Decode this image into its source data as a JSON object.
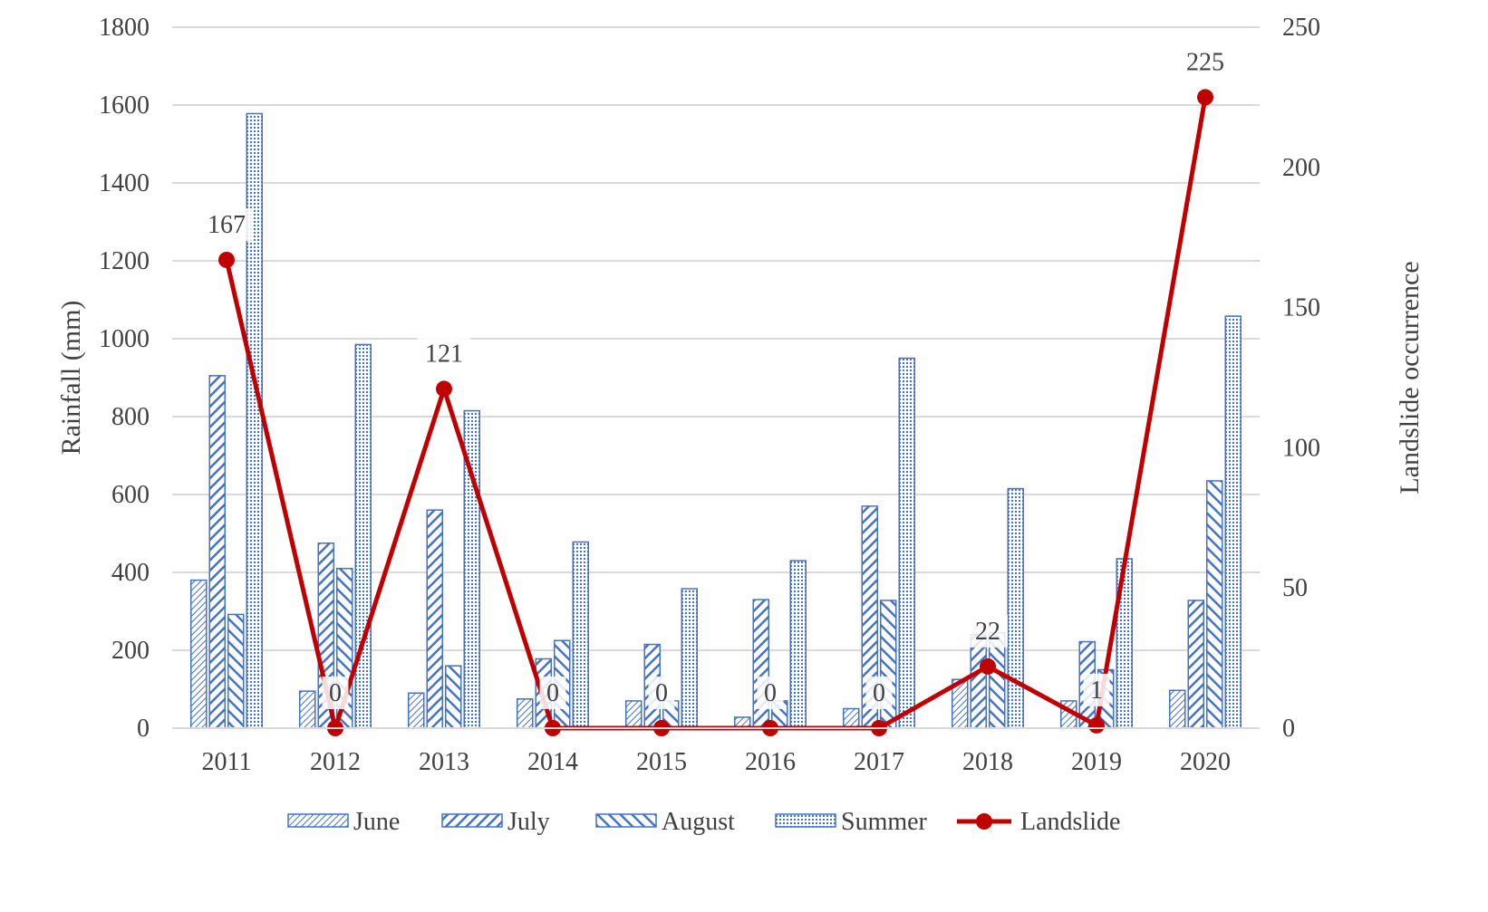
{
  "chart_data": {
    "type": "bar",
    "categories": [
      "2011",
      "2012",
      "2013",
      "2014",
      "2015",
      "2016",
      "2017",
      "2018",
      "2019",
      "2020"
    ],
    "series": [
      {
        "name": "June",
        "axis": "left",
        "kind": "bar",
        "pattern": "dense-diag",
        "values": [
          380,
          95,
          90,
          75,
          70,
          28,
          50,
          125,
          70,
          97
        ]
      },
      {
        "name": "July",
        "axis": "left",
        "kind": "bar",
        "pattern": "diag-right",
        "values": [
          905,
          475,
          560,
          178,
          215,
          330,
          570,
          240,
          222,
          328
        ]
      },
      {
        "name": "August",
        "axis": "left",
        "kind": "bar",
        "pattern": "diag-left",
        "values": [
          292,
          410,
          160,
          225,
          70,
          70,
          328,
          245,
          150,
          635
        ]
      },
      {
        "name": "Summer",
        "axis": "left",
        "kind": "bar",
        "pattern": "dotted-grid",
        "values": [
          1578,
          985,
          815,
          478,
          358,
          430,
          950,
          615,
          435,
          1058
        ]
      },
      {
        "name": "Landslide",
        "axis": "right",
        "kind": "line",
        "values": [
          167,
          0,
          121,
          0,
          0,
          0,
          0,
          22,
          1,
          225
        ]
      }
    ],
    "ylabel": "Rainfall (mm)",
    "y2label": "Landslide occurrence",
    "ylim": [
      0,
      1800
    ],
    "y2lim": [
      0,
      250
    ],
    "yticks": [
      "0",
      "200",
      "400",
      "600",
      "800",
      "1000",
      "1200",
      "1400",
      "1600",
      "1800"
    ],
    "y2ticks": [
      "0",
      "50",
      "100",
      "150",
      "200",
      "250"
    ],
    "grid": true,
    "legend_position": "bottom",
    "colors": {
      "bar": "#4472c4",
      "line": "#c00000",
      "grid": "#d9d9d9",
      "text": "#404040"
    }
  }
}
